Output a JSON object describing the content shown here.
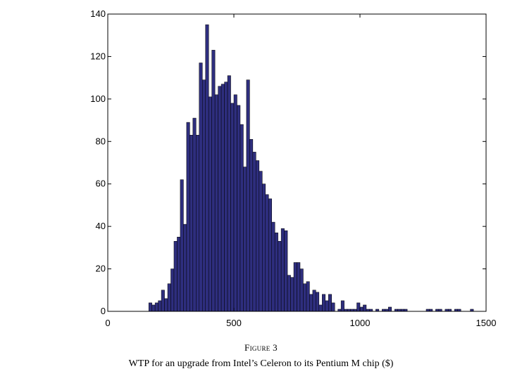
{
  "figure": {
    "label": "Figure 3",
    "caption": "WTP for an upgrade from Intel’s Celeron to its Pentium M chip ($)"
  },
  "chart_data": {
    "type": "bar",
    "title": "",
    "xlabel": "",
    "ylabel": "",
    "xlim": [
      0,
      1500
    ],
    "ylim": [
      0,
      140
    ],
    "xticks": [
      0,
      500,
      1000,
      1500
    ],
    "yticks": [
      0,
      20,
      40,
      60,
      80,
      100,
      120,
      140
    ],
    "bin_width": 12.5,
    "bar_color": "#2e2e7e",
    "bar_edge_color": "#000000",
    "bins_x": [
      162.5,
      175,
      187.5,
      200,
      212.5,
      225,
      237.5,
      250,
      262.5,
      275,
      287.5,
      300,
      312.5,
      325,
      337.5,
      350,
      362.5,
      375,
      387.5,
      400,
      412.5,
      425,
      437.5,
      450,
      462.5,
      475,
      487.5,
      500,
      512.5,
      525,
      537.5,
      550,
      562.5,
      575,
      587.5,
      600,
      612.5,
      625,
      637.5,
      650,
      662.5,
      675,
      687.5,
      700,
      712.5,
      725,
      737.5,
      750,
      762.5,
      775,
      787.5,
      800,
      812.5,
      825,
      837.5,
      850,
      862.5,
      875,
      887.5,
      900,
      912.5,
      925,
      937.5,
      950,
      962.5,
      975,
      987.5,
      1000,
      1012.5,
      1025,
      1037.5,
      1050,
      1062.5,
      1075,
      1087.5,
      1100,
      1112.5,
      1125,
      1137.5,
      1150,
      1162.5,
      1175,
      1187.5,
      1200,
      1212.5,
      1225,
      1237.5,
      1250,
      1262.5,
      1275,
      1287.5,
      1300,
      1312.5,
      1325,
      1337.5,
      1350,
      1362.5,
      1375,
      1387.5,
      1400,
      1412.5,
      1425,
      1437.5
    ],
    "values": [
      4,
      3,
      4,
      5,
      10,
      6,
      13,
      20,
      33,
      35,
      62,
      41,
      89,
      83,
      91,
      83,
      117,
      109,
      135,
      101,
      123,
      102,
      106,
      107,
      108,
      111,
      98,
      102,
      97,
      88,
      68,
      109,
      81,
      75,
      71,
      66,
      60,
      55,
      53,
      42,
      37,
      33,
      39,
      38,
      17,
      16,
      23,
      23,
      20,
      13,
      14,
      8,
      10,
      9,
      3,
      8,
      5,
      8,
      4,
      0,
      1,
      5,
      1,
      1,
      1,
      1,
      4,
      2,
      3,
      1,
      1,
      0,
      1,
      0,
      1,
      1,
      2,
      0,
      1,
      1,
      1,
      1,
      0,
      0,
      0,
      0,
      0,
      0,
      1,
      1,
      0,
      1,
      1,
      0,
      1,
      1,
      0,
      1,
      1,
      0,
      0,
      0,
      1
    ]
  }
}
